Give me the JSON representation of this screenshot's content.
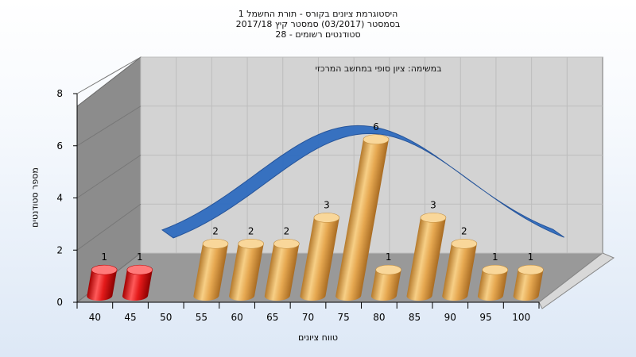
{
  "chart_data": {
    "type": "bar",
    "title_lines": [
      "היסטוגרמת ציונים בקורס - תורת החשמל 1",
      "בסמסטר  (03/2017)  סמסטר קיץ 2017/18",
      "סטודנטים רשומים - 28"
    ],
    "subtitle": "במשימה: ציון סופי במחשב המרכזי",
    "xlabel": "טווח ציונים",
    "ylabel": "מספר סטודנטים",
    "categories": [
      "40",
      "45",
      "50",
      "55",
      "60",
      "65",
      "70",
      "75",
      "80",
      "85",
      "90",
      "95",
      "100"
    ],
    "values": [
      1,
      1,
      0,
      2,
      2,
      2,
      3,
      6,
      1,
      3,
      2,
      1,
      1
    ],
    "ylim": [
      0,
      8
    ],
    "yticks": [
      "0",
      "2",
      "4",
      "6",
      "8"
    ],
    "failing_color": "#e01010",
    "passing_color": "#e0a44a",
    "curve_color": "#2f6cc0",
    "grid": true
  }
}
